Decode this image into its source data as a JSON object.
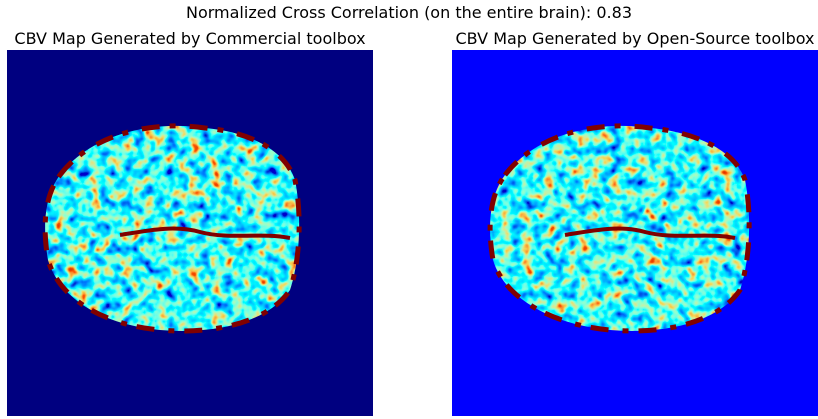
{
  "title": "Normalized Cross Correlation (on the entire brain): 0.83",
  "panels": [
    {
      "title": "CBV Map Generated by Commercial toolbox"
    },
    {
      "title": "CBV Map Generated by Open-Source toolbox"
    }
  ]
}
